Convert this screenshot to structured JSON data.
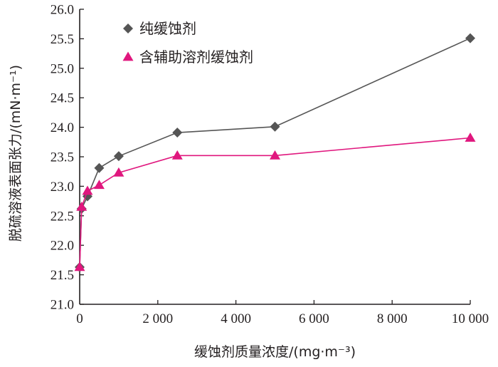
{
  "chart_data": {
    "type": "line",
    "title": "",
    "xlabel": "缓蚀剂质量浓度/(mg·m⁻³)",
    "ylabel": "脱硫溶液表面张力/(mN·m⁻¹)",
    "xlim": [
      0,
      10000
    ],
    "ylim": [
      21.0,
      26.0
    ],
    "x_ticks": [
      0,
      2000,
      4000,
      6000,
      8000,
      10000
    ],
    "x_tick_labels": [
      "0",
      "2 000",
      "4 000",
      "6 000",
      "8 000",
      "10 000"
    ],
    "y_ticks": [
      21.0,
      21.5,
      22.0,
      22.5,
      23.0,
      23.5,
      24.0,
      24.5,
      25.0,
      25.5,
      26.0
    ],
    "y_tick_labels": [
      "21.0",
      "21.5",
      "22.0",
      "22.5",
      "23.0",
      "23.5",
      "24.0",
      "24.5",
      "25.0",
      "25.5",
      "26.0"
    ],
    "grid": false,
    "legend_position": "top-left",
    "series": [
      {
        "name": "纯缓蚀剂",
        "marker": "diamond",
        "color": "#555555",
        "x": [
          0,
          50,
          200,
          500,
          1000,
          2500,
          5000,
          10000
        ],
        "y": [
          21.63,
          22.62,
          22.83,
          23.31,
          23.51,
          23.91,
          24.01,
          25.51
        ]
      },
      {
        "name": "含辅助溶剂缓蚀剂",
        "marker": "triangle",
        "color": "#e0177e",
        "x": [
          0,
          50,
          200,
          500,
          1000,
          2500,
          5000,
          10000
        ],
        "y": [
          21.63,
          22.65,
          22.92,
          23.02,
          23.23,
          23.52,
          23.52,
          23.82
        ]
      }
    ]
  }
}
